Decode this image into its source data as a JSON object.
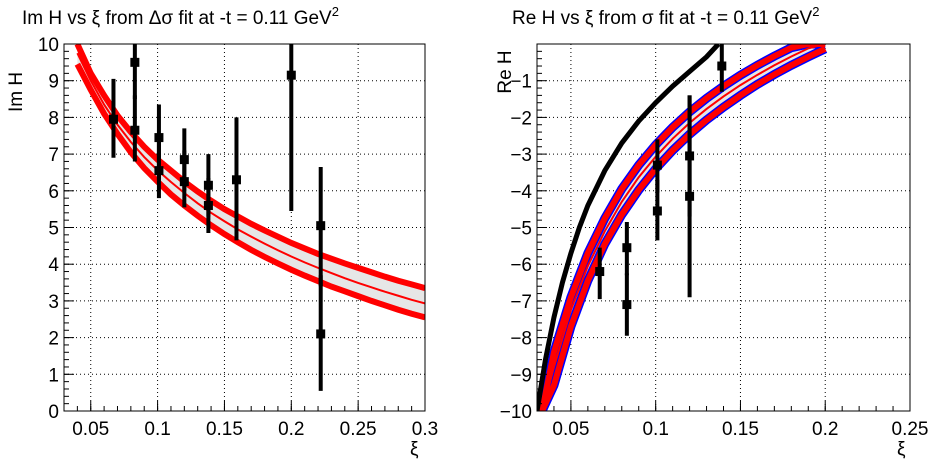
{
  "chart_data": [
    {
      "type": "scatter",
      "title_main": "Im H vs ξ from Δσ fit at -t = 0.11 GeV",
      "title_sup": "2",
      "xlabel": "ξ",
      "ylabel": "Im H",
      "xlim": [
        0.03,
        0.3
      ],
      "ylim": [
        0,
        10
      ],
      "grid": true,
      "x_ticks": [
        "0.05",
        "0.1",
        "0.15",
        "0.2",
        "0.25",
        "0.3"
      ],
      "y_ticks": [
        "0",
        "1",
        "2",
        "3",
        "4",
        "5",
        "6",
        "7",
        "8",
        "9",
        "10"
      ],
      "series": [
        {
          "kind": "points",
          "color": "#000000",
          "points": [
            {
              "x": 0.067,
              "y": 7.95,
              "ylo": 6.9,
              "yhi": 9.05
            },
            {
              "x": 0.083,
              "y": 9.5,
              "ylo": 8.5,
              "yhi": 10.0
            },
            {
              "x": 0.083,
              "y": 7.65,
              "ylo": 6.8,
              "yhi": 8.6
            },
            {
              "x": 0.101,
              "y": 7.45,
              "ylo": 6.3,
              "yhi": 8.35
            },
            {
              "x": 0.101,
              "y": 6.55,
              "ylo": 5.8,
              "yhi": 7.4
            },
            {
              "x": 0.12,
              "y": 6.85,
              "ylo": 6.0,
              "yhi": 7.7
            },
            {
              "x": 0.12,
              "y": 6.25,
              "ylo": 5.55,
              "yhi": 7.1
            },
            {
              "x": 0.138,
              "y": 6.15,
              "ylo": 5.3,
              "yhi": 7.0
            },
            {
              "x": 0.138,
              "y": 5.6,
              "ylo": 4.85,
              "yhi": 6.35
            },
            {
              "x": 0.159,
              "y": 6.3,
              "ylo": 4.65,
              "yhi": 8.0
            },
            {
              "x": 0.2,
              "y": 9.15,
              "ylo": 5.45,
              "yhi": 10.0
            },
            {
              "x": 0.222,
              "y": 5.05,
              "ylo": 3.4,
              "yhi": 6.65
            },
            {
              "x": 0.222,
              "y": 2.1,
              "ylo": 0.55,
              "yhi": 3.7
            }
          ]
        },
        {
          "kind": "band",
          "color": "#ff0000",
          "fill": "#e6e6e6",
          "x": [
            0.04,
            0.05,
            0.06,
            0.07,
            0.08,
            0.09,
            0.1,
            0.11,
            0.12,
            0.13,
            0.14,
            0.15,
            0.16,
            0.17,
            0.18,
            0.19,
            0.2,
            0.21,
            0.22,
            0.23,
            0.24,
            0.25,
            0.26,
            0.27,
            0.28,
            0.29,
            0.3
          ],
          "y_upper": [
            10.0,
            9.2,
            8.6,
            8.05,
            7.6,
            7.2,
            6.85,
            6.55,
            6.25,
            5.98,
            5.73,
            5.5,
            5.3,
            5.1,
            4.92,
            4.75,
            4.58,
            4.43,
            4.28,
            4.15,
            4.02,
            3.9,
            3.78,
            3.66,
            3.55,
            3.45,
            3.35
          ],
          "y_center": [
            9.75,
            9.0,
            8.35,
            7.8,
            7.33,
            6.92,
            6.56,
            6.24,
            5.94,
            5.66,
            5.4,
            5.17,
            4.95,
            4.75,
            4.56,
            4.38,
            4.21,
            4.05,
            3.9,
            3.76,
            3.62,
            3.49,
            3.37,
            3.25,
            3.14,
            3.03,
            2.93
          ],
          "y_lower": [
            9.45,
            8.75,
            8.1,
            7.55,
            7.05,
            6.62,
            6.25,
            5.9,
            5.6,
            5.32,
            5.06,
            4.82,
            4.6,
            4.39,
            4.2,
            4.02,
            3.85,
            3.69,
            3.54,
            3.39,
            3.26,
            3.13,
            3.0,
            2.88,
            2.76,
            2.65,
            2.55
          ]
        }
      ]
    },
    {
      "type": "scatter",
      "title_main": "Re H vs ξ from σ fit at -t = 0.11 GeV",
      "title_sup": "2",
      "xlabel": "ξ",
      "ylabel": "Re H",
      "xlim": [
        0.03,
        0.25
      ],
      "ylim": [
        -10,
        0
      ],
      "grid": true,
      "x_ticks": [
        "0.05",
        "0.1",
        "0.15",
        "0.2",
        "0.25"
      ],
      "y_ticks": [
        "−10",
        "−9",
        "−8",
        "−7",
        "−6",
        "−5",
        "−4",
        "−3",
        "−2",
        "−1"
      ],
      "series": [
        {
          "kind": "points",
          "color": "#000000",
          "points": [
            {
              "x": 0.067,
              "y": -6.2,
              "ylo": -6.95,
              "yhi": -5.55
            },
            {
              "x": 0.083,
              "y": -5.55,
              "ylo": -6.3,
              "yhi": -4.85
            },
            {
              "x": 0.083,
              "y": -7.1,
              "ylo": -7.95,
              "yhi": -6.25
            },
            {
              "x": 0.101,
              "y": -3.3,
              "ylo": -4.05,
              "yhi": -2.6
            },
            {
              "x": 0.101,
              "y": -4.55,
              "ylo": -5.35,
              "yhi": -3.7
            },
            {
              "x": 0.12,
              "y": -3.05,
              "ylo": -4.7,
              "yhi": -1.4
            },
            {
              "x": 0.12,
              "y": -4.15,
              "ylo": -6.9,
              "yhi": -1.4
            },
            {
              "x": 0.139,
              "y": -0.6,
              "ylo": -1.3,
              "yhi": 0.0
            }
          ]
        },
        {
          "kind": "curve",
          "color": "#000000",
          "x": [
            0.03,
            0.035,
            0.04,
            0.045,
            0.05,
            0.055,
            0.06,
            0.07,
            0.08,
            0.09,
            0.1,
            0.11,
            0.12,
            0.13,
            0.137
          ],
          "y": [
            -10.0,
            -8.6,
            -7.45,
            -6.5,
            -5.7,
            -5.0,
            -4.4,
            -3.45,
            -2.7,
            -2.1,
            -1.6,
            -1.15,
            -0.75,
            -0.35,
            0.0
          ]
        },
        {
          "kind": "band",
          "color": "#ff0000",
          "fill": "#e6e6e6",
          "edge": "#0000ff",
          "x": [
            0.033,
            0.04,
            0.05,
            0.06,
            0.07,
            0.08,
            0.09,
            0.1,
            0.11,
            0.12,
            0.13,
            0.14,
            0.15,
            0.16,
            0.17,
            0.18,
            0.19,
            0.2
          ],
          "y_upper": [
            -10.0,
            -8.4,
            -6.9,
            -5.7,
            -4.75,
            -3.95,
            -3.3,
            -2.75,
            -2.27,
            -1.85,
            -1.48,
            -1.15,
            -0.85,
            -0.58,
            -0.33,
            -0.1,
            0.0,
            0.0
          ],
          "y_center": [
            -10.0,
            -8.8,
            -7.25,
            -6.05,
            -5.1,
            -4.3,
            -3.63,
            -3.07,
            -2.58,
            -2.15,
            -1.77,
            -1.43,
            -1.12,
            -0.84,
            -0.58,
            -0.34,
            -0.12,
            0.0
          ],
          "y_lower": [
            -10.0,
            -9.3,
            -7.7,
            -6.45,
            -5.45,
            -4.65,
            -3.98,
            -3.4,
            -2.9,
            -2.46,
            -2.07,
            -1.72,
            -1.4,
            -1.1,
            -0.83,
            -0.58,
            -0.35,
            -0.13
          ]
        }
      ]
    }
  ]
}
